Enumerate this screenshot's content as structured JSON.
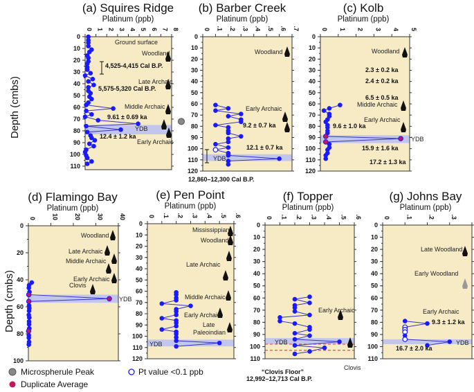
{
  "figure": {
    "y_axis_label": "Depth (cmbs)",
    "legend": {
      "microspherule": "Microspherule Peak",
      "duplicate": "Duplicate Average",
      "open": "Pt value <0.1 ppb"
    },
    "colors": {
      "background": "#f7ebc6",
      "points": "#1a1aff",
      "ydb_band": "#b9bff2",
      "duplicate": "#c2185b",
      "microspherule": "#888888",
      "clovis_floor": "#d9534f"
    }
  },
  "chart_data": [
    {
      "id": "a",
      "type": "scatter-line",
      "title": "(a) Squires Ridge",
      "xlabel": "Platinum (ppb)",
      "ylabel": "Depth (cmbs)",
      "xlim": [
        0,
        8
      ],
      "ylim": [
        0,
        113
      ],
      "xticks": [
        "0",
        "1",
        "2",
        "3",
        "4",
        "5",
        "6",
        "7",
        "8"
      ],
      "yticks": [
        "0",
        "10",
        "20",
        "30",
        "40",
        "50",
        "60",
        "70",
        "80",
        "90",
        "100",
        "110"
      ],
      "ydb": [
        75,
        83
      ],
      "points": [
        [
          0,
          0.3,
          "f"
        ],
        [
          3,
          0.3,
          "f"
        ],
        [
          5,
          0.3,
          "f"
        ],
        [
          8,
          0.3,
          "f"
        ],
        [
          11,
          0.6,
          "f"
        ],
        [
          13,
          0.4,
          "f"
        ],
        [
          16,
          0.2,
          "f"
        ],
        [
          18,
          0.3,
          "f"
        ],
        [
          21,
          0.3,
          "f"
        ],
        [
          23,
          0.2,
          "f"
        ],
        [
          26,
          0.2,
          "f"
        ],
        [
          28,
          0.2,
          "f"
        ],
        [
          31,
          0.5,
          "f"
        ],
        [
          33,
          0.0,
          "f"
        ],
        [
          36,
          0.7,
          "f"
        ],
        [
          38,
          0.3,
          "f"
        ],
        [
          41,
          0.8,
          "f"
        ],
        [
          43,
          0.3,
          "f"
        ],
        [
          46,
          0.3,
          "f"
        ],
        [
          48,
          0.5,
          "f"
        ],
        [
          51,
          0.4,
          "f"
        ],
        [
          53,
          0.6,
          "f"
        ],
        [
          56,
          0.3,
          "f"
        ],
        [
          58,
          0.1,
          "f"
        ],
        [
          61,
          2.6,
          "f"
        ],
        [
          63,
          0.1,
          "f"
        ],
        [
          66,
          0.6,
          "f"
        ],
        [
          68,
          0.0,
          "f"
        ],
        [
          71,
          1.2,
          "f"
        ],
        [
          74,
          4.9,
          "f"
        ],
        [
          76,
          0.1,
          "f"
        ],
        [
          79,
          3.3,
          "f"
        ],
        [
          81,
          0.2,
          "f"
        ],
        [
          84,
          0.5,
          "f"
        ],
        [
          86,
          0.6,
          "f"
        ],
        [
          88,
          0.9,
          "f"
        ],
        [
          91,
          0.4,
          "f"
        ],
        [
          93,
          0.8,
          "f"
        ],
        [
          96,
          0.1,
          "f"
        ],
        [
          98,
          0.0,
          "f"
        ],
        [
          101,
          0.1,
          "f"
        ],
        [
          103,
          0.2,
          "f"
        ],
        [
          106,
          0.6,
          "f"
        ],
        [
          108,
          0.2,
          "f"
        ]
      ],
      "microspherule_depth": 72,
      "annotations": [
        "Ground surface",
        "Woodland",
        "4,525-4,415 Cal B.P.",
        "Late Archaic",
        "5,575-5,320 Cal B.P.",
        "Middle Archaic",
        "9.61 ± 0.69 ka",
        "YDB",
        "12.4 ± 1.2 ka",
        "Early Archaic"
      ]
    },
    {
      "id": "b",
      "type": "scatter-line",
      "title": "(b) Barber Creek",
      "xlabel": "Platinum (ppb)",
      "ylabel": "Depth (cmbs)",
      "xlim": [
        0,
        0.7
      ],
      "ylim": [
        0,
        120
      ],
      "xticks": [
        "0",
        ".1",
        ".2",
        ".3",
        ".4",
        ".5",
        ".6",
        ".7"
      ],
      "yticks": [
        "0",
        "10",
        "20",
        "30",
        "40",
        "50",
        "60",
        "70",
        "80",
        "90",
        "100",
        "110",
        "120"
      ],
      "ydb": [
        105,
        111
      ],
      "points": [
        [
          61,
          0.1,
          "f"
        ],
        [
          64,
          0.2,
          "f"
        ],
        [
          66,
          0.1,
          "f"
        ],
        [
          69,
          0.3,
          "f"
        ],
        [
          71,
          0.2,
          "f"
        ],
        [
          74,
          0.3,
          "f"
        ],
        [
          76,
          0.3,
          "f"
        ],
        [
          79,
          0.1,
          "f"
        ],
        [
          81,
          0.2,
          "f"
        ],
        [
          84,
          0.2,
          "f"
        ],
        [
          86,
          0.2,
          "f"
        ],
        [
          89,
          0.3,
          "f"
        ],
        [
          91,
          0.2,
          "f"
        ],
        [
          94,
          0.2,
          "f"
        ],
        [
          96,
          0.1,
          "f"
        ],
        [
          99,
          0.2,
          "f"
        ],
        [
          101,
          0.1,
          "o"
        ],
        [
          104,
          0.2,
          "f"
        ],
        [
          106,
          0.2,
          "f"
        ],
        [
          109,
          0.6,
          "f"
        ],
        [
          111,
          0.2,
          "f"
        ],
        [
          114,
          0.2,
          "f"
        ]
      ],
      "annotations": [
        "Woodland",
        "Early Archaic",
        "9.2 ± 0.7 ka",
        "12.1 ± 0.7 ka",
        "YDB",
        "12,860–12,300 Cal B.P."
      ]
    },
    {
      "id": "c",
      "type": "scatter-line",
      "title": "(c) Kolb",
      "xlabel": "Platinum (ppb)",
      "ylabel": "Depth (cmbs)",
      "xlim": [
        0,
        5
      ],
      "ylim": [
        0,
        120
      ],
      "xticks": [
        "0",
        "1",
        "2",
        "3",
        "4",
        "5"
      ],
      "yticks": [
        "0",
        "10",
        "20",
        "30",
        "40",
        "50",
        "60",
        "70",
        "80",
        "90",
        "100",
        "110",
        "120"
      ],
      "ydb": [
        88,
        95
      ],
      "points": [
        [
          61,
          1.1,
          "f"
        ],
        [
          64,
          0.5,
          "f"
        ],
        [
          66,
          0.2,
          "f"
        ],
        [
          69,
          0.5,
          "f"
        ],
        [
          71,
          0.5,
          "f"
        ],
        [
          74,
          0.4,
          "f"
        ],
        [
          76,
          0.3,
          "f"
        ],
        [
          79,
          0.4,
          "f"
        ],
        [
          81,
          0.4,
          "f"
        ],
        [
          84,
          0.4,
          "f"
        ],
        [
          86,
          0.4,
          "f"
        ],
        [
          89,
          0.3,
          "d"
        ],
        [
          91,
          4.5,
          "d"
        ],
        [
          94,
          0.3,
          "d"
        ],
        [
          96,
          0.5,
          "f"
        ],
        [
          99,
          0.5,
          "f"
        ],
        [
          101,
          0.4,
          "f"
        ],
        [
          104,
          0.4,
          "f"
        ],
        [
          106,
          0.3,
          "f"
        ],
        [
          109,
          0.3,
          "f"
        ]
      ],
      "annotations": [
        "Woodland",
        "2.3 ± 0.2 ka",
        "2.4 ± 0.2 ka",
        "6.5 ± 0.5 ka",
        "Middle Archaic",
        "Early Archaic",
        "9.6 ± 1.0 ka",
        "YDB",
        "15.9 ± 1.6 ka",
        "17.2 ± 1.3 ka"
      ]
    },
    {
      "id": "d",
      "type": "scatter-line",
      "title": "(d) Flamingo Bay",
      "xlabel": "Platinum (ppb)",
      "ylabel": "Depth (cmbs)",
      "xlim": [
        0,
        40
      ],
      "ylim": [
        0,
        100
      ],
      "xticks": [
        "0",
        "10",
        "20",
        "30",
        "40"
      ],
      "yticks": [
        "0",
        "20",
        "40",
        "60",
        "80",
        "100"
      ],
      "ydb": [
        51,
        57
      ],
      "points": [
        [
          42,
          1.5,
          "f"
        ],
        [
          44,
          0.3,
          "f"
        ],
        [
          46,
          0.2,
          "f"
        ],
        [
          49,
          0.5,
          "f"
        ],
        [
          51,
          0.2,
          "d"
        ],
        [
          54,
          36,
          "d"
        ],
        [
          56,
          0.2,
          "d"
        ],
        [
          59,
          0.3,
          "f"
        ],
        [
          61,
          0.4,
          "f"
        ],
        [
          63,
          0.3,
          "f"
        ],
        [
          66,
          0.2,
          "f"
        ],
        [
          68,
          0.4,
          "f"
        ],
        [
          71,
          0.3,
          "f"
        ],
        [
          73,
          0.3,
          "f"
        ],
        [
          76,
          0.4,
          "f"
        ],
        [
          78,
          0.1,
          "d"
        ],
        [
          81,
          0.2,
          "f"
        ],
        [
          83,
          0.2,
          "f"
        ],
        [
          86,
          0.3,
          "f"
        ],
        [
          88,
          0.2,
          "f"
        ]
      ],
      "annotations": [
        "Woodland",
        "Late Archaic",
        "Middle Archaic",
        "Early Archaic",
        "Clovis",
        "YDB"
      ]
    },
    {
      "id": "e",
      "type": "scatter-line",
      "title": "(e) Pen Point",
      "xlabel": "Platinum (ppb)",
      "ylabel": "Depth (cmbs)",
      "xlim": [
        0,
        0.6
      ],
      "ylim": [
        0,
        120
      ],
      "xticks": [
        "0",
        ".1",
        ".2",
        ".3",
        ".4",
        ".5",
        ".6"
      ],
      "yticks": [
        "0",
        "10",
        "20",
        "30",
        "40",
        "50",
        "60",
        "70",
        "80",
        "90",
        "100",
        "110",
        "120"
      ],
      "ydb": [
        103,
        109
      ],
      "points": [
        [
          61,
          0.2,
          "f"
        ],
        [
          63,
          0.2,
          "f"
        ],
        [
          66,
          0.2,
          "f"
        ],
        [
          68,
          0.2,
          "f"
        ],
        [
          71,
          0.1,
          "f"
        ],
        [
          73,
          0.3,
          "f"
        ],
        [
          76,
          0.2,
          "f"
        ],
        [
          78,
          0.2,
          "f"
        ],
        [
          81,
          0.2,
          "f"
        ],
        [
          84,
          0.1,
          "f"
        ],
        [
          86,
          0.2,
          "f"
        ],
        [
          88,
          0.2,
          "f"
        ],
        [
          91,
          0.2,
          "f"
        ],
        [
          94,
          0.1,
          "f"
        ],
        [
          96,
          0.2,
          "f"
        ],
        [
          98,
          0.2,
          "f"
        ],
        [
          101,
          0.2,
          "f"
        ],
        [
          104,
          0.2,
          "f"
        ],
        [
          106,
          0.5,
          "f"
        ],
        [
          109,
          0.2,
          "f"
        ]
      ],
      "annotations": [
        "Mississippian",
        "Woodland",
        "Late Archaic",
        "Middle Archaic",
        "Early Archaic",
        "Late",
        "Paleoindian",
        "YDB"
      ]
    },
    {
      "id": "f",
      "type": "scatter-line",
      "title": "(f) Topper",
      "xlabel": "Platinum (ppb)",
      "ylabel": "Depth (cmbs)",
      "xlim": [
        0,
        0.6
      ],
      "ylim": [
        0,
        110
      ],
      "xticks": [
        "0",
        ".1",
        ".2",
        ".3",
        ".4",
        ".5",
        ".6"
      ],
      "yticks": [
        "0",
        "10",
        "20",
        "30",
        "40",
        "50",
        "60",
        "70",
        "80",
        "90",
        "100",
        "110"
      ],
      "ydb": [
        93,
        98
      ],
      "clovis_floor": [
        98,
        103
      ],
      "points": [
        [
          59,
          0.3,
          "f"
        ],
        [
          61,
          0.2,
          "f"
        ],
        [
          64,
          0.3,
          "f"
        ],
        [
          66,
          0.2,
          "f"
        ],
        [
          68,
          0.2,
          "f"
        ],
        [
          71,
          0.2,
          "f"
        ],
        [
          74,
          0.3,
          "f"
        ],
        [
          76,
          0.1,
          "f"
        ],
        [
          79,
          0.1,
          "f"
        ],
        [
          81,
          0.2,
          "f"
        ],
        [
          84,
          0.3,
          "f"
        ],
        [
          86,
          0.3,
          "f"
        ],
        [
          89,
          0.2,
          "f"
        ],
        [
          91,
          0.3,
          "f"
        ],
        [
          94,
          0.2,
          "f"
        ],
        [
          96,
          0.5,
          "f"
        ],
        [
          99,
          0.2,
          "f"
        ],
        [
          101,
          0.4,
          "f"
        ],
        [
          104,
          0.3,
          "f"
        ],
        [
          106,
          0.2,
          "f"
        ]
      ],
      "annotations": [
        "Early Archaic",
        "YDB",
        "“Clovis Floor”",
        "12,992–12,713 Cal B.P.",
        "Clovis"
      ]
    },
    {
      "id": "g",
      "type": "scatter-line",
      "title": "(g) Johns Bay",
      "xlabel": "Platinum (ppb)",
      "ylabel": "Depth (cmbs)",
      "xlim": [
        0,
        0.4
      ],
      "ylim": [
        0,
        110
      ],
      "xticks": [
        "0",
        ".1",
        ".2",
        ".3",
        ".4"
      ],
      "yticks": [
        "0",
        "10",
        "20",
        "30",
        "40",
        "50",
        "60",
        "70",
        "80",
        "90",
        "100",
        "110"
      ],
      "ydb": [
        94,
        98
      ],
      "points": [
        [
          79,
          0.1,
          "f"
        ],
        [
          81,
          0.2,
          "f"
        ],
        [
          84,
          0.1,
          "o"
        ],
        [
          86,
          0.1,
          "o"
        ],
        [
          88,
          0.1,
          "o"
        ],
        [
          91,
          0.1,
          "f"
        ],
        [
          94,
          0.1,
          "o"
        ],
        [
          96,
          0.3,
          "f"
        ],
        [
          99,
          0.2,
          "f"
        ]
      ],
      "annotations": [
        "Late Woodland",
        "Early Woodland",
        "Early Archaic",
        "9.3 ± 1.2 ka",
        "YDB",
        "16.7 ± 2.0 ka"
      ]
    }
  ]
}
